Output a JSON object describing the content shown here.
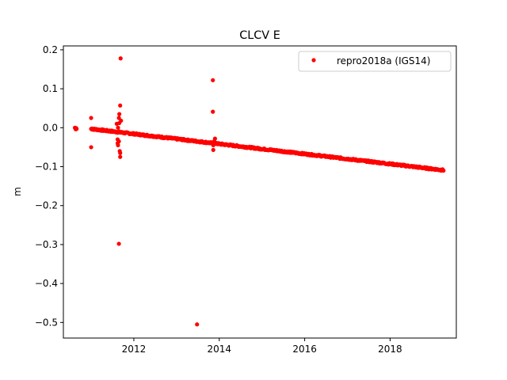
{
  "chart_data": {
    "type": "scatter",
    "title": "CLCV E",
    "xlabel": "",
    "ylabel": "m",
    "xlim": [
      2010.35,
      2019.55
    ],
    "ylim": [
      -0.54,
      0.21
    ],
    "grid": false,
    "legend_position": "top-right",
    "x_ticks": [
      2012,
      2014,
      2016,
      2018
    ],
    "y_ticks": [
      0.2,
      0.1,
      0.0,
      -0.1,
      -0.2,
      -0.3,
      -0.4,
      -0.5
    ],
    "x_tick_labels": [
      "2012",
      "2014",
      "2016",
      "2018"
    ],
    "y_tick_labels": [
      "0.2",
      "0.1",
      "0.0",
      "−0.1",
      "−0.2",
      "−0.3",
      "−0.4",
      "−0.5"
    ],
    "trend": {
      "start": [
        2011.0,
        -0.003
      ],
      "end": [
        2019.25,
        -0.109
      ],
      "points_per_year": 90
    },
    "series": [
      {
        "name": "repro2018a (IGS14)",
        "color": "#ff0000",
        "marker": "circle",
        "points": [
          [
            2010.62,
            0.0
          ],
          [
            2010.63,
            -0.002
          ],
          [
            2010.64,
            -0.004
          ],
          [
            2010.65,
            -0.001
          ],
          [
            2010.66,
            -0.003
          ],
          [
            2011.0,
            0.025
          ],
          [
            2011.0,
            -0.05
          ],
          [
            2011.02,
            -0.002
          ],
          [
            2011.6,
            0.01
          ],
          [
            2011.62,
            -0.03
          ],
          [
            2011.62,
            -0.04
          ],
          [
            2011.63,
            -0.045
          ],
          [
            2011.63,
            0.0
          ],
          [
            2011.64,
            -0.01
          ],
          [
            2011.65,
            0.025
          ],
          [
            2011.65,
            -0.035
          ],
          [
            2011.66,
            0.035
          ],
          [
            2011.66,
            0.012
          ],
          [
            2011.67,
            -0.06
          ],
          [
            2011.68,
            -0.065
          ],
          [
            2011.68,
            -0.075
          ],
          [
            2011.68,
            0.057
          ],
          [
            2011.7,
            0.018
          ],
          [
            2011.65,
            -0.298
          ],
          [
            2011.69,
            0.178
          ],
          [
            2013.48,
            -0.505
          ],
          [
            2013.85,
            0.122
          ],
          [
            2013.85,
            0.041
          ],
          [
            2013.86,
            -0.057
          ],
          [
            2013.86,
            -0.045
          ],
          [
            2013.88,
            -0.035
          ],
          [
            2013.9,
            -0.028
          ],
          [
            2013.92,
            -0.04
          ]
        ]
      }
    ]
  }
}
